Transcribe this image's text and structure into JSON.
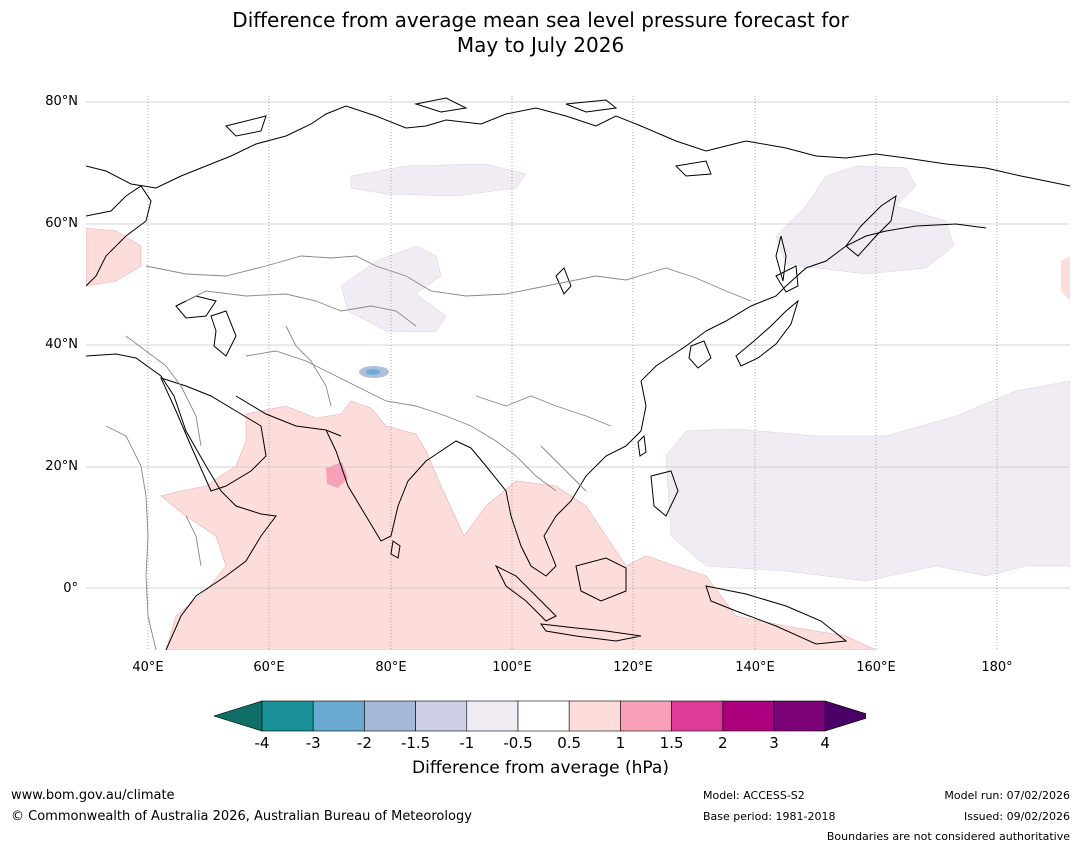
{
  "title_line1": "Difference from average mean sea level pressure forecast for",
  "title_line2": "May to July 2026",
  "lat_labels": [
    "80°N",
    "60°N",
    "40°N",
    "20°N",
    "0°"
  ],
  "lon_labels": [
    "40°E",
    "60°E",
    "80°E",
    "100°E",
    "120°E",
    "140°E",
    "160°E",
    "180°"
  ],
  "colorbar": {
    "labels": [
      "-4",
      "-3",
      "-2",
      "-1.5",
      "-1",
      "-0.5",
      "0.5",
      "1",
      "1.5",
      "2",
      "3",
      "4"
    ],
    "colors": [
      "#0f6f68",
      "#1a9097",
      "#6aa9d0",
      "#a4b8d8",
      "#cdd0e4",
      "#f1ecf3",
      "#ffffff",
      "#fddcdc",
      "#f8a0b8",
      "#dc3b98",
      "#ad007e",
      "#7a0177",
      "#4a0067"
    ],
    "title": "Difference from average (hPa)"
  },
  "footer": {
    "website": "www.bom.gov.au/climate",
    "copyright": "© Commonwealth of Australia 2026, Australian Bureau of Meteorology",
    "model": "Model: ACCESS-S2",
    "base_period": "Base period: 1981-2018",
    "model_run": "Model run: 07/02/2026",
    "issued": "Issued: 09/02/2026",
    "disclaimer": "Boundaries are not considered authoritative"
  }
}
